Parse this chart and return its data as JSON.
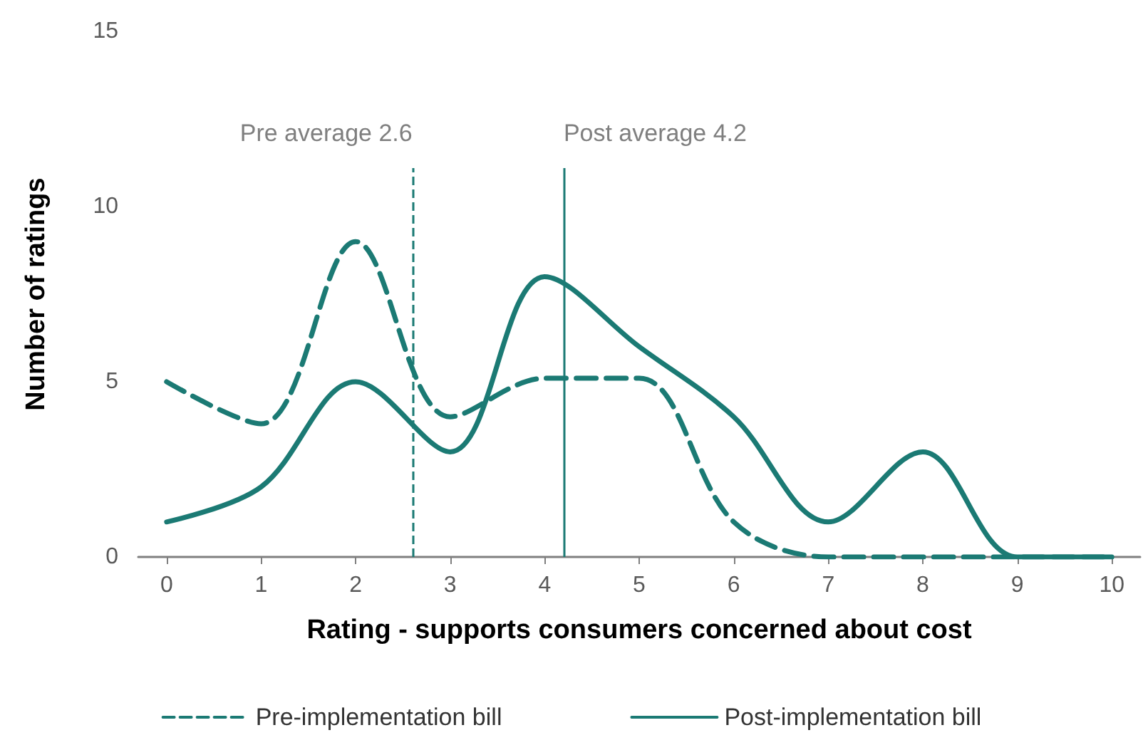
{
  "chart_data": {
    "type": "line",
    "xlabel": "Rating - supports consumers concerned about cost",
    "ylabel": "Number of ratings",
    "x": [
      0,
      1,
      2,
      3,
      4,
      5,
      6,
      7,
      8,
      9,
      10
    ],
    "series": [
      {
        "name": "Pre-implementation bill",
        "color": "#1b7a74",
        "line_style": "dashed",
        "values": [
          5,
          3.8,
          9,
          4,
          5.1,
          5.1,
          1,
          0,
          0,
          0,
          0
        ]
      },
      {
        "name": "Post-implementation bill",
        "color": "#1b7a74",
        "line_style": "solid",
        "values": [
          1,
          2,
          5,
          3,
          8,
          6,
          4,
          1,
          3,
          0,
          0
        ]
      }
    ],
    "xlim": [
      -0.3,
      10.3
    ],
    "xticks": [
      0,
      1,
      2,
      3,
      4,
      5,
      6,
      7,
      8,
      9,
      10
    ],
    "ylim": [
      0,
      15
    ],
    "yticks": [
      0,
      5,
      10,
      15
    ],
    "ref_lines": [
      {
        "axis": "x",
        "value": 2.6,
        "label": "Pre average 2.6",
        "color": "#1b7a74",
        "line_style": "dashed"
      },
      {
        "axis": "x",
        "value": 4.2,
        "label": "Post average 4.2",
        "color": "#1b7a74",
        "line_style": "solid"
      }
    ],
    "grid": false,
    "legend": "bottom",
    "marker": "none"
  }
}
